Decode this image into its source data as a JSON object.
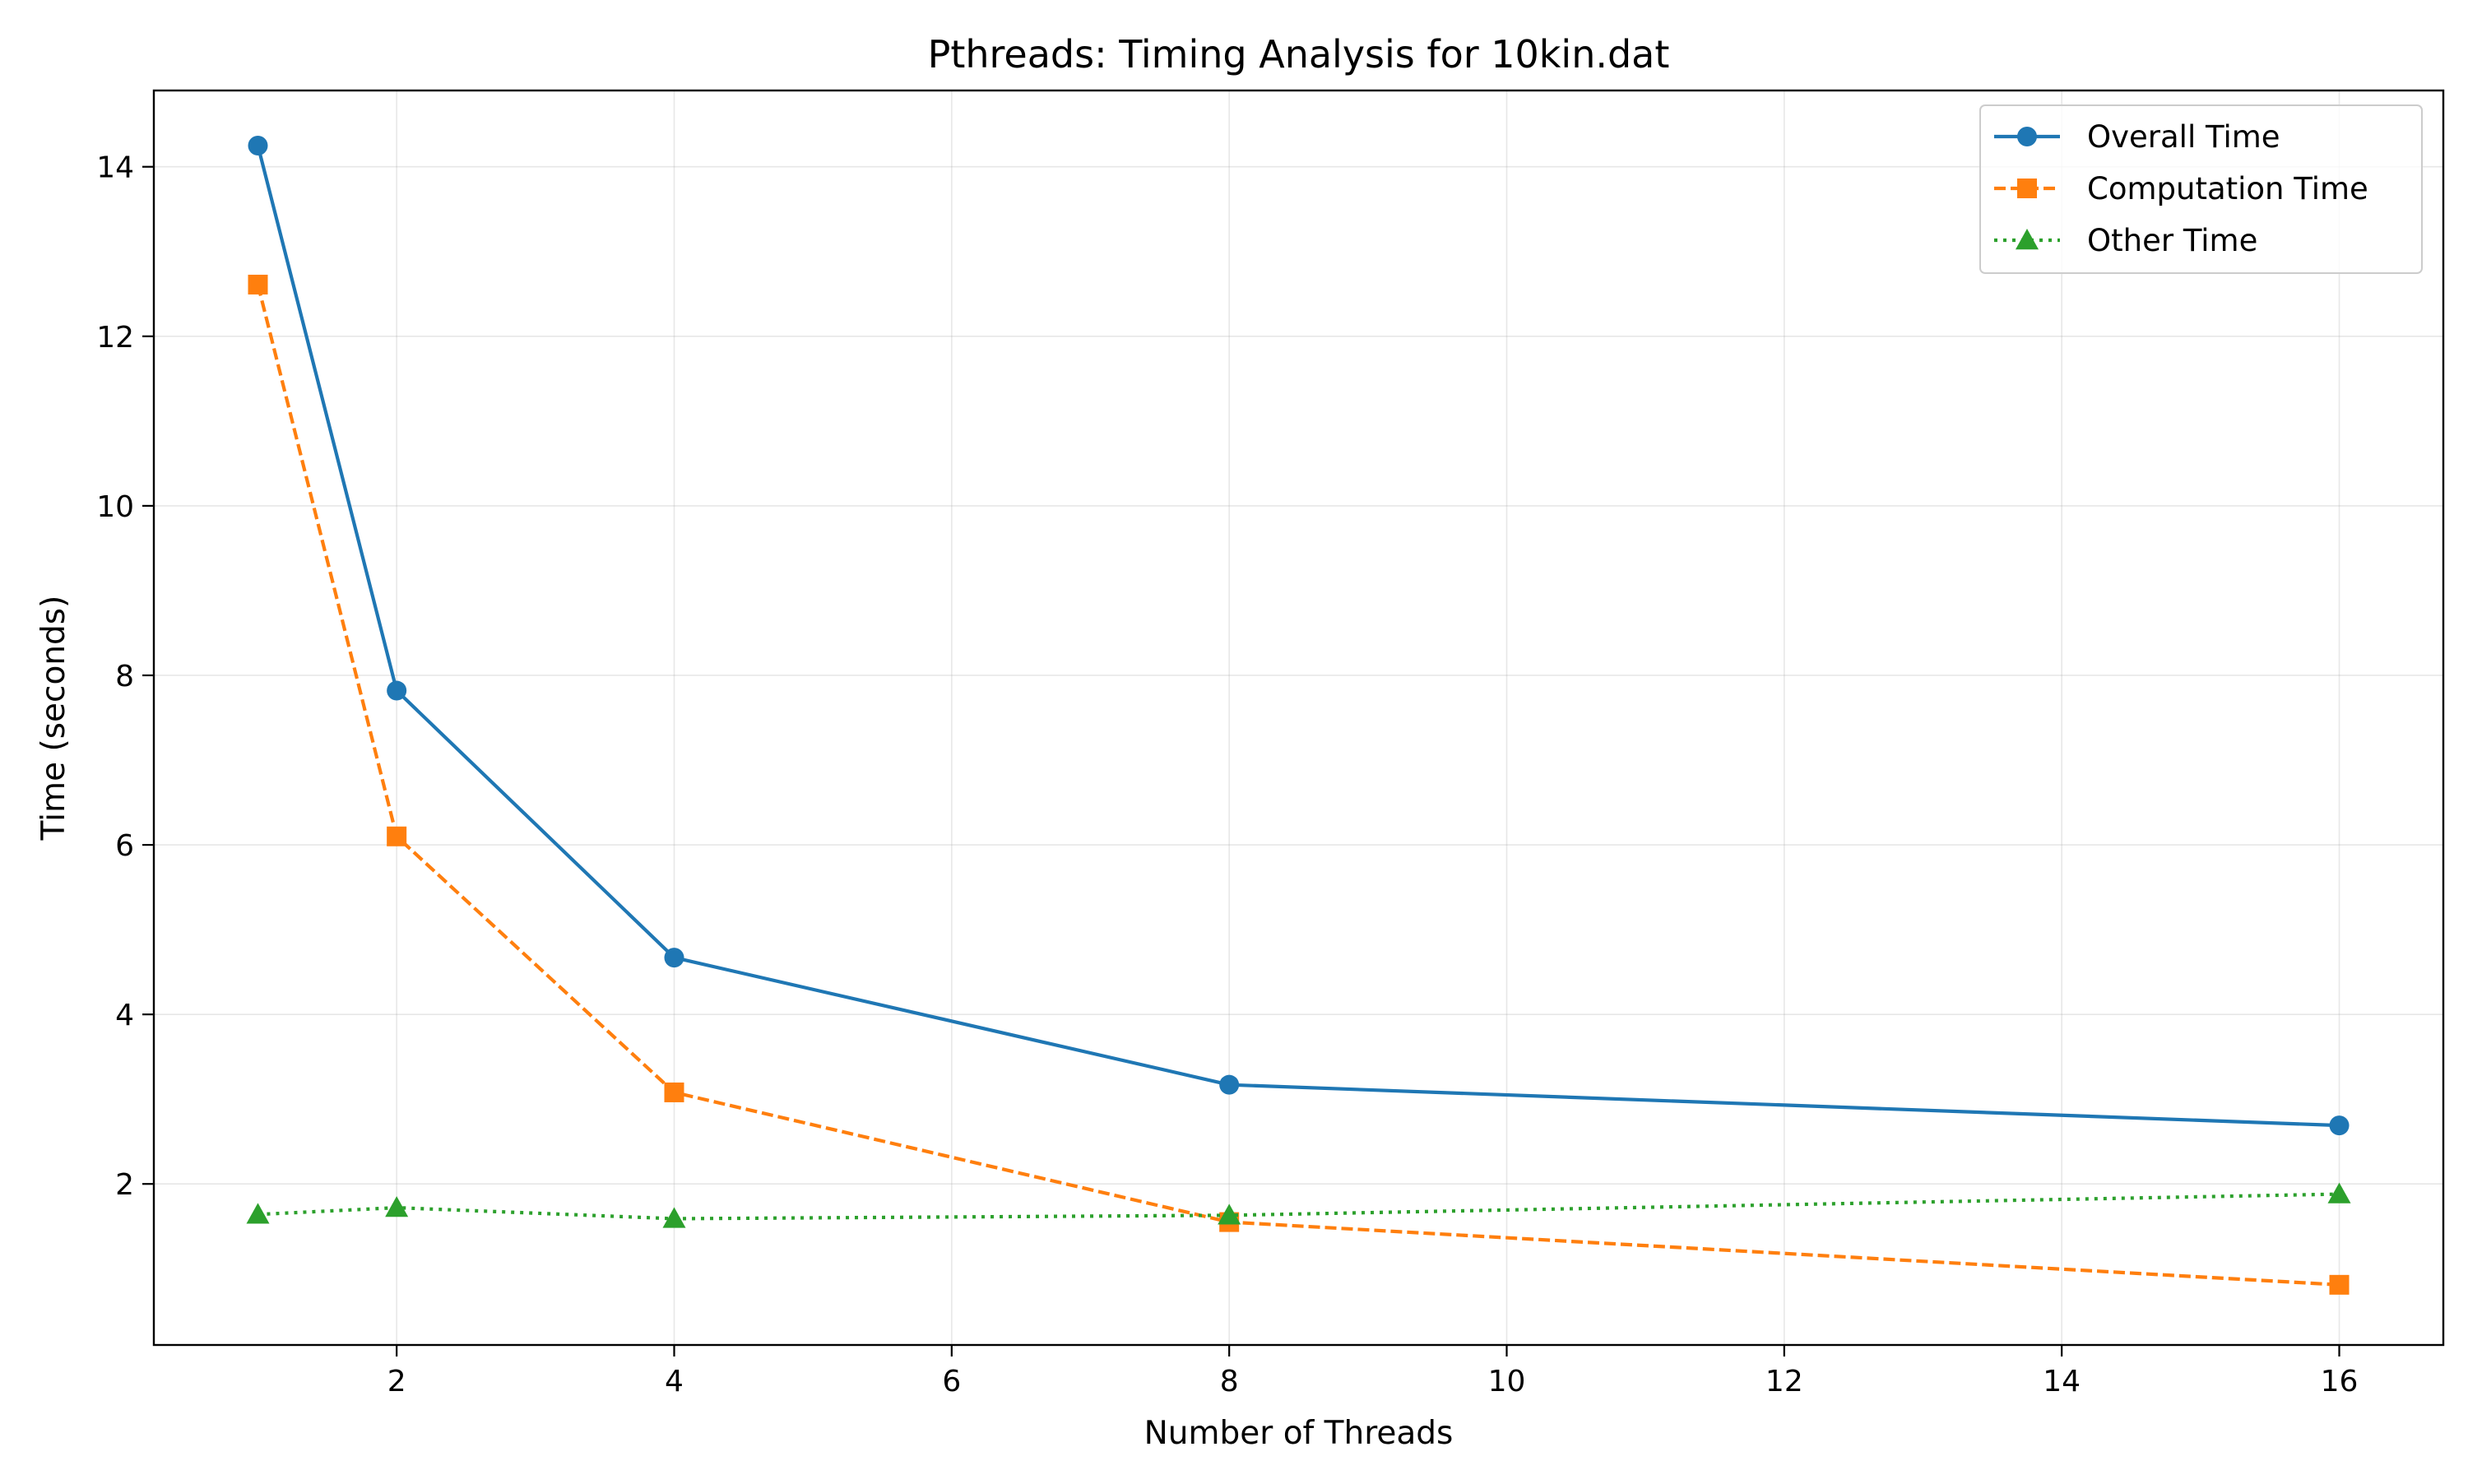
{
  "chart_data": {
    "type": "line",
    "title": "Pthreads: Timing Analysis for 10kin.dat",
    "xlabel": "Number of Threads",
    "ylabel": "Time (seconds)",
    "x": [
      1,
      2,
      4,
      8,
      16
    ],
    "xlim": [
      0.25,
      16.75
    ],
    "ylim": [
      0.1,
      14.9
    ],
    "xticks": [
      2,
      4,
      6,
      8,
      10,
      12,
      14,
      16
    ],
    "yticks": [
      2,
      4,
      6,
      8,
      10,
      12,
      14
    ],
    "grid": true,
    "legend_position": "top-right",
    "series": [
      {
        "name": "Overall Time",
        "values": [
          14.25,
          7.82,
          4.67,
          3.17,
          2.69
        ],
        "color": "#1f77b4",
        "marker": "circle",
        "line_style": "solid"
      },
      {
        "name": "Computation Time",
        "values": [
          12.61,
          6.1,
          3.08,
          1.55,
          0.81
        ],
        "color": "#ff7f0e",
        "marker": "square",
        "line_style": "dashed"
      },
      {
        "name": "Other Time",
        "values": [
          1.64,
          1.72,
          1.59,
          1.63,
          1.88
        ],
        "color": "#2ca02c",
        "marker": "triangle",
        "line_style": "dotted"
      }
    ]
  }
}
